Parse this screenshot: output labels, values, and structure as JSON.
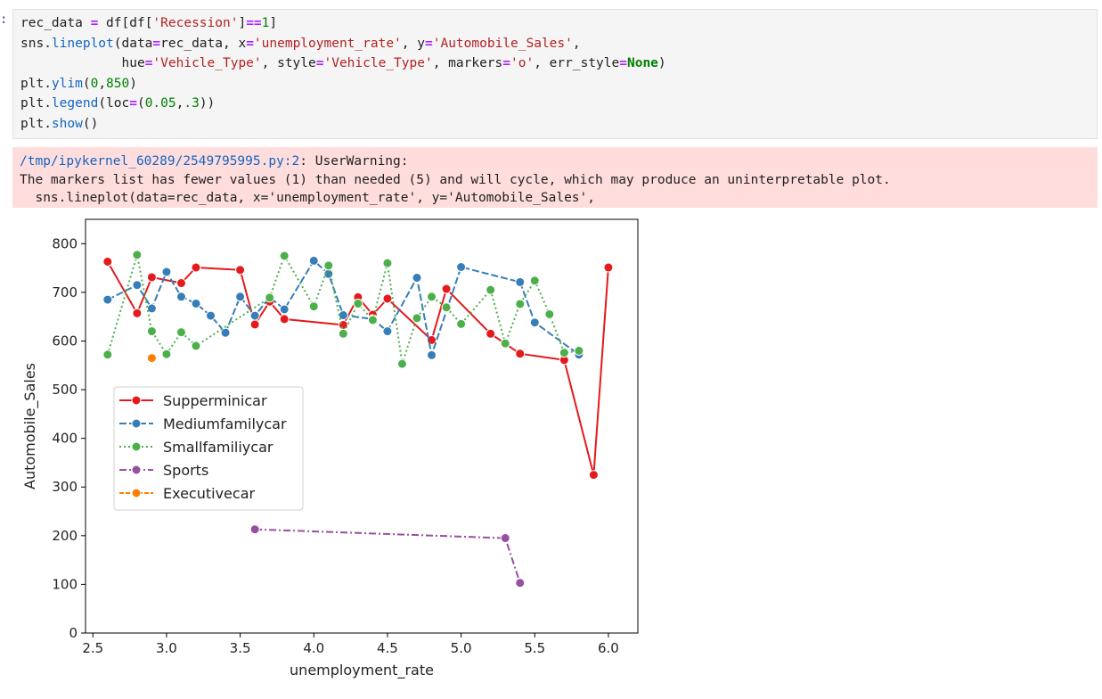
{
  "cell": {
    "prompt": ":",
    "code_lines": [
      [
        {
          "t": "rec_data ",
          "c": ""
        },
        {
          "t": "=",
          "c": "op"
        },
        {
          "t": " df[df[",
          "c": ""
        },
        {
          "t": "'Recession'",
          "c": "str"
        },
        {
          "t": "]",
          "c": ""
        },
        {
          "t": "==",
          "c": "op"
        },
        {
          "t": "1",
          "c": "num"
        },
        {
          "t": "]",
          "c": ""
        }
      ],
      [
        {
          "t": "sns.",
          "c": ""
        },
        {
          "t": "lineplot",
          "c": "kw-fn"
        },
        {
          "t": "(data",
          "c": ""
        },
        {
          "t": "=",
          "c": "op"
        },
        {
          "t": "rec_data, x",
          "c": ""
        },
        {
          "t": "=",
          "c": "op"
        },
        {
          "t": "'unemployment_rate'",
          "c": "str"
        },
        {
          "t": ", y",
          "c": ""
        },
        {
          "t": "=",
          "c": "op"
        },
        {
          "t": "'Automobile_Sales'",
          "c": "str"
        },
        {
          "t": ",",
          "c": ""
        }
      ],
      [
        {
          "t": "             hue",
          "c": ""
        },
        {
          "t": "=",
          "c": "op"
        },
        {
          "t": "'Vehicle_Type'",
          "c": "str"
        },
        {
          "t": ", style",
          "c": ""
        },
        {
          "t": "=",
          "c": "op"
        },
        {
          "t": "'Vehicle_Type'",
          "c": "str"
        },
        {
          "t": ", markers",
          "c": ""
        },
        {
          "t": "=",
          "c": "op"
        },
        {
          "t": "'o'",
          "c": "str"
        },
        {
          "t": ", err_style",
          "c": ""
        },
        {
          "t": "=",
          "c": "op"
        },
        {
          "t": "None",
          "c": "kw"
        },
        {
          "t": ")",
          "c": ""
        }
      ],
      [
        {
          "t": "plt.",
          "c": ""
        },
        {
          "t": "ylim",
          "c": "kw-fn"
        },
        {
          "t": "(",
          "c": ""
        },
        {
          "t": "0",
          "c": "num"
        },
        {
          "t": ",",
          "c": ""
        },
        {
          "t": "850",
          "c": "num"
        },
        {
          "t": ")",
          "c": ""
        }
      ],
      [
        {
          "t": "plt.",
          "c": ""
        },
        {
          "t": "legend",
          "c": "kw-fn"
        },
        {
          "t": "(loc",
          "c": ""
        },
        {
          "t": "=",
          "c": "op"
        },
        {
          "t": "(",
          "c": ""
        },
        {
          "t": "0.05",
          "c": "num"
        },
        {
          "t": ",",
          "c": ""
        },
        {
          "t": ".3",
          "c": "num"
        },
        {
          "t": "))",
          "c": ""
        }
      ],
      [
        {
          "t": "plt.",
          "c": ""
        },
        {
          "t": "show",
          "c": "kw-fn"
        },
        {
          "t": "()",
          "c": ""
        }
      ]
    ]
  },
  "stderr": {
    "path": "/tmp/ipykernel_60289/2549795995.py:2",
    "warning": ": UserWarning:",
    "line2": "The markers list has fewer values (1) than needed (5) and will cycle, which may produce an uninterpretable plot.",
    "line3": "  sns.lineplot(data=rec_data, x='unemployment_rate', y='Automobile_Sales',"
  },
  "chart_data": {
    "type": "line",
    "xlabel": "unemployment_rate",
    "ylabel": "Automobile_Sales",
    "xlim": [
      2.45,
      6.2
    ],
    "ylim": [
      0,
      850
    ],
    "xticks": [
      2.5,
      3.0,
      3.5,
      4.0,
      4.5,
      5.0,
      5.5,
      6.0
    ],
    "xtick_labels": [
      "2.5",
      "3.0",
      "3.5",
      "4.0",
      "4.5",
      "5.0",
      "5.5",
      "6.0"
    ],
    "yticks": [
      0,
      100,
      200,
      300,
      400,
      500,
      600,
      700,
      800
    ],
    "ytick_labels": [
      "0",
      "100",
      "200",
      "300",
      "400",
      "500",
      "600",
      "700",
      "800"
    ],
    "legend_position": "center-left",
    "series": [
      {
        "name": "Supperminicar",
        "color": "#e41a1c",
        "dash": "",
        "points": [
          [
            2.6,
            763
          ],
          [
            2.8,
            657
          ],
          [
            2.9,
            731
          ],
          [
            3.1,
            719
          ],
          [
            3.2,
            751
          ],
          [
            3.5,
            746
          ],
          [
            3.6,
            634
          ],
          [
            3.7,
            681
          ],
          [
            3.8,
            645
          ],
          [
            4.2,
            633
          ],
          [
            4.3,
            690
          ],
          [
            4.4,
            654
          ],
          [
            4.5,
            687
          ],
          [
            4.8,
            602
          ],
          [
            4.9,
            707
          ],
          [
            5.2,
            615
          ],
          [
            5.4,
            574
          ],
          [
            5.7,
            561
          ],
          [
            5.9,
            325
          ],
          [
            6.0,
            751
          ]
        ]
      },
      {
        "name": "Mediumfamilycar",
        "color": "#377eb8",
        "dash": "8,3",
        "points": [
          [
            2.6,
            685
          ],
          [
            2.8,
            715
          ],
          [
            2.9,
            667
          ],
          [
            3.0,
            742
          ],
          [
            3.1,
            691
          ],
          [
            3.2,
            677
          ],
          [
            3.3,
            652
          ],
          [
            3.4,
            617
          ],
          [
            3.5,
            691
          ],
          [
            3.6,
            652
          ],
          [
            3.7,
            690
          ],
          [
            3.8,
            665
          ],
          [
            4.0,
            765
          ],
          [
            4.1,
            738
          ],
          [
            4.2,
            653
          ],
          [
            4.4,
            645
          ],
          [
            4.5,
            620
          ],
          [
            4.7,
            730
          ],
          [
            4.8,
            571
          ],
          [
            5.0,
            752
          ],
          [
            5.4,
            721
          ],
          [
            5.5,
            638
          ],
          [
            5.8,
            572
          ]
        ]
      },
      {
        "name": "Smallfamiliycar",
        "color": "#4daf4a",
        "dash": "2,3",
        "points": [
          [
            2.6,
            572
          ],
          [
            2.8,
            777
          ],
          [
            2.9,
            620
          ],
          [
            3.0,
            573
          ],
          [
            3.1,
            618
          ],
          [
            3.2,
            590
          ],
          [
            3.7,
            689
          ],
          [
            3.8,
            775
          ],
          [
            4.0,
            671
          ],
          [
            4.1,
            755
          ],
          [
            4.2,
            615
          ],
          [
            4.3,
            677
          ],
          [
            4.4,
            643
          ],
          [
            4.5,
            760
          ],
          [
            4.6,
            553
          ],
          [
            4.7,
            647
          ],
          [
            4.8,
            691
          ],
          [
            4.9,
            669
          ],
          [
            5.0,
            635
          ],
          [
            5.2,
            705
          ],
          [
            5.3,
            595
          ],
          [
            5.4,
            676
          ],
          [
            5.5,
            724
          ],
          [
            5.6,
            655
          ],
          [
            5.7,
            576
          ],
          [
            5.8,
            580
          ]
        ]
      },
      {
        "name": "Sports",
        "color": "#984ea3",
        "dash": "8,3,2,3",
        "points": [
          [
            3.6,
            213
          ],
          [
            5.3,
            195
          ],
          [
            5.4,
            103
          ]
        ]
      },
      {
        "name": "Executivecar",
        "color": "#ff7f00",
        "dash": "5,2",
        "points": [
          [
            2.9,
            565
          ]
        ]
      }
    ]
  }
}
